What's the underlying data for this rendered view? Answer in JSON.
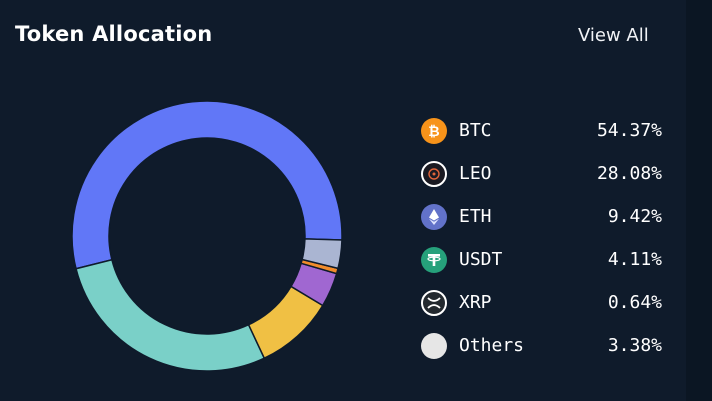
{
  "header": {
    "title": "Token Allocation",
    "view_all_label": "View All"
  },
  "colors": {
    "background": "#0f1b2b",
    "text": "#ffffff",
    "btc_icon": "#f7931a",
    "leo_icon": "#1a1a22",
    "eth_icon": "#6272c9",
    "usdt_icon": "#26a17b",
    "xrp_icon": "#23292f",
    "others_icon": "#e6e6e6"
  },
  "legend": [
    {
      "name": "BTC",
      "value": "54.37%",
      "icon": "bitcoin-icon"
    },
    {
      "name": "LEO",
      "value": "28.08%",
      "icon": "leo-icon"
    },
    {
      "name": "ETH",
      "value": "9.42%",
      "icon": "ethereum-icon"
    },
    {
      "name": "USDT",
      "value": "4.11%",
      "icon": "tether-icon"
    },
    {
      "name": "XRP",
      "value": "0.64%",
      "icon": "xrp-icon"
    },
    {
      "name": "Others",
      "value": "3.38%",
      "icon": "others-icon"
    }
  ],
  "chart_data": {
    "type": "pie",
    "title": "Token Allocation",
    "categories": [
      "BTC",
      "LEO",
      "ETH",
      "USDT",
      "XRP",
      "Others"
    ],
    "values": [
      54.37,
      28.08,
      9.42,
      4.11,
      0.64,
      3.38
    ],
    "slice_colors": [
      "#6177f7",
      "#7ad0c8",
      "#f0c044",
      "#a067d1",
      "#f28c2a",
      "#aab5d2"
    ],
    "unit": "%"
  }
}
